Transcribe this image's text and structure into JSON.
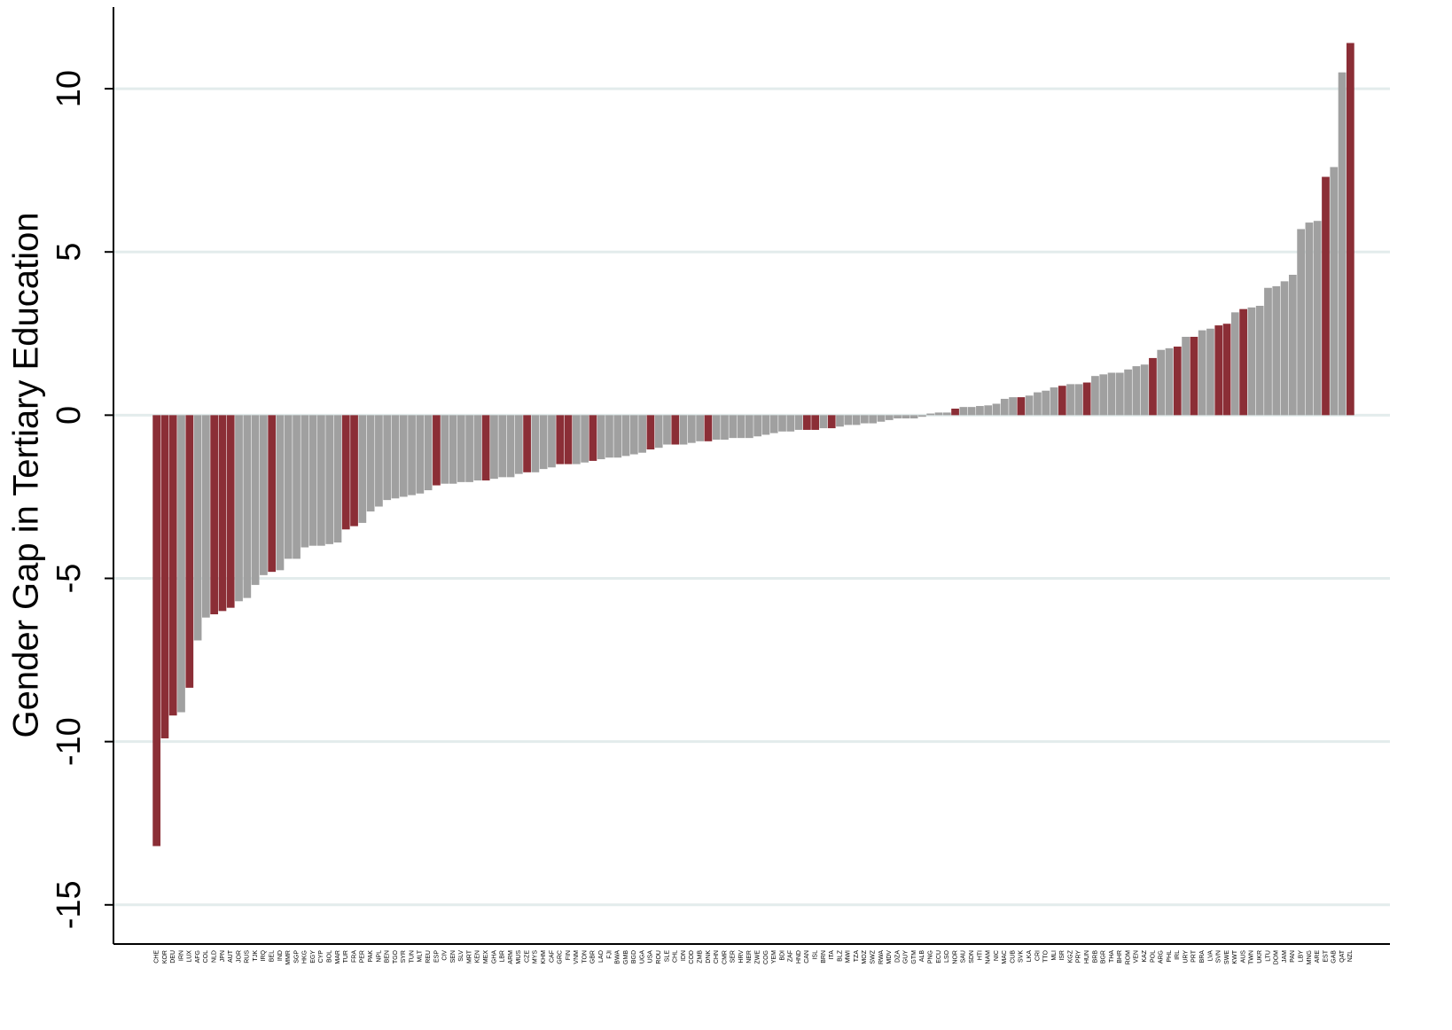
{
  "chart_data": {
    "type": "bar",
    "y_label": "Gender Gap in Tertiary Education",
    "categories": [
      "CHE",
      "KOR",
      "DEU",
      "IRN",
      "LUX",
      "AFG",
      "COL",
      "NLD",
      "JPN",
      "AUT",
      "JOR",
      "RUS",
      "TJK",
      "IRQ",
      "BEL",
      "IND",
      "MMR",
      "SGP",
      "HKG",
      "EGY",
      "CYP",
      "BOL",
      "MAR",
      "TUR",
      "FRA",
      "PER",
      "PAK",
      "NPL",
      "BEN",
      "TGO",
      "SYR",
      "TUN",
      "MLT",
      "REU",
      "ESP",
      "CIV",
      "SEN",
      "SLV",
      "MRT",
      "KEN",
      "MEX",
      "GHA",
      "LBR",
      "ARM",
      "MUS",
      "CZE",
      "MYS",
      "KHM",
      "CAF",
      "GRC",
      "FIN",
      "VNM",
      "TON",
      "GBR",
      "LAO",
      "FJI",
      "BWA",
      "GMB",
      "BGD",
      "UGA",
      "USA",
      "ROU",
      "SLE",
      "CHL",
      "IDN",
      "COD",
      "ZMB",
      "DNK",
      "CHN",
      "CMR",
      "SER",
      "HRV",
      "NER",
      "ZWE",
      "COG",
      "YEM",
      "BDI",
      "ZAF",
      "HND",
      "CAN",
      "ISL",
      "BRN",
      "ITA",
      "BLZ",
      "MWI",
      "TZA",
      "MOZ",
      "SWZ",
      "RWA",
      "MDV",
      "DZA",
      "GUY",
      "GTM",
      "ALB",
      "PNG",
      "ECU",
      "LSO",
      "NOR",
      "SAU",
      "SDN",
      "HTI",
      "NAM",
      "NIC",
      "MAC",
      "CUB",
      "SVK",
      "LKA",
      "CRI",
      "TTO",
      "MLI",
      "ISR",
      "KGZ",
      "PRY",
      "HUN",
      "BRB",
      "BGR",
      "THA",
      "BHR",
      "ROM",
      "VEN",
      "KAZ",
      "POL",
      "ARG",
      "PHL",
      "IRL",
      "URY",
      "PRT",
      "BRA",
      "LVA",
      "SVN",
      "SWE",
      "KWT",
      "AUS",
      "TWN",
      "UKR",
      "LTU",
      "DOM",
      "JAM",
      "PAN",
      "LBY",
      "MNG",
      "ARE",
      "EST",
      "GAB",
      "QAT",
      "NZL"
    ],
    "values": [
      -13.2,
      -9.9,
      -9.2,
      -9.1,
      -8.35,
      -6.9,
      -6.2,
      -6.1,
      -6.0,
      -5.9,
      -5.7,
      -5.6,
      -5.2,
      -4.9,
      -4.8,
      -4.75,
      -4.4,
      -4.4,
      -4.05,
      -4.0,
      -4.0,
      -3.95,
      -3.9,
      -3.5,
      -3.4,
      -3.3,
      -2.95,
      -2.8,
      -2.6,
      -2.55,
      -2.5,
      -2.45,
      -2.4,
      -2.3,
      -2.15,
      -2.1,
      -2.1,
      -2.05,
      -2.05,
      -2.0,
      -2.0,
      -1.95,
      -1.9,
      -1.9,
      -1.8,
      -1.75,
      -1.75,
      -1.65,
      -1.6,
      -1.5,
      -1.5,
      -1.5,
      -1.45,
      -1.4,
      -1.35,
      -1.3,
      -1.3,
      -1.25,
      -1.2,
      -1.15,
      -1.05,
      -1.0,
      -0.9,
      -0.9,
      -0.9,
      -0.85,
      -0.8,
      -0.8,
      -0.75,
      -0.75,
      -0.7,
      -0.7,
      -0.7,
      -0.65,
      -0.6,
      -0.55,
      -0.5,
      -0.5,
      -0.45,
      -0.45,
      -0.45,
      -0.4,
      -0.4,
      -0.35,
      -0.3,
      -0.3,
      -0.25,
      -0.25,
      -0.2,
      -0.15,
      -0.1,
      -0.1,
      -0.1,
      -0.05,
      0.05,
      0.08,
      0.08,
      0.2,
      0.25,
      0.25,
      0.28,
      0.3,
      0.35,
      0.5,
      0.55,
      0.55,
      0.6,
      0.7,
      0.75,
      0.85,
      0.9,
      0.95,
      0.95,
      1.0,
      1.2,
      1.25,
      1.3,
      1.3,
      1.4,
      1.5,
      1.55,
      1.75,
      2.0,
      2.05,
      2.1,
      2.4,
      2.4,
      2.6,
      2.65,
      2.75,
      2.8,
      3.15,
      3.25,
      3.3,
      3.35,
      3.9,
      3.95,
      4.1,
      4.3,
      5.7,
      5.9,
      5.95,
      7.3,
      7.6,
      10.5,
      11.4
    ],
    "colors": [
      "#8b2e36",
      "#8b2e36",
      "#8b2e36",
      "#a0a0a0",
      "#8b2e36",
      "#a0a0a0",
      "#a0a0a0",
      "#8b2e36",
      "#8b2e36",
      "#8b2e36",
      "#a0a0a0",
      "#a0a0a0",
      "#a0a0a0",
      "#a0a0a0",
      "#8b2e36",
      "#a0a0a0",
      "#a0a0a0",
      "#a0a0a0",
      "#a0a0a0",
      "#a0a0a0",
      "#a0a0a0",
      "#a0a0a0",
      "#a0a0a0",
      "#8b2e36",
      "#8b2e36",
      "#a0a0a0",
      "#a0a0a0",
      "#a0a0a0",
      "#a0a0a0",
      "#a0a0a0",
      "#a0a0a0",
      "#a0a0a0",
      "#a0a0a0",
      "#a0a0a0",
      "#8b2e36",
      "#a0a0a0",
      "#a0a0a0",
      "#a0a0a0",
      "#a0a0a0",
      "#a0a0a0",
      "#8b2e36",
      "#a0a0a0",
      "#a0a0a0",
      "#a0a0a0",
      "#a0a0a0",
      "#8b2e36",
      "#a0a0a0",
      "#a0a0a0",
      "#a0a0a0",
      "#8b2e36",
      "#8b2e36",
      "#a0a0a0",
      "#a0a0a0",
      "#8b2e36",
      "#a0a0a0",
      "#a0a0a0",
      "#a0a0a0",
      "#a0a0a0",
      "#a0a0a0",
      "#a0a0a0",
      "#8b2e36",
      "#a0a0a0",
      "#a0a0a0",
      "#8b2e36",
      "#a0a0a0",
      "#a0a0a0",
      "#a0a0a0",
      "#8b2e36",
      "#a0a0a0",
      "#a0a0a0",
      "#a0a0a0",
      "#a0a0a0",
      "#a0a0a0",
      "#a0a0a0",
      "#a0a0a0",
      "#a0a0a0",
      "#a0a0a0",
      "#a0a0a0",
      "#a0a0a0",
      "#8b2e36",
      "#8b2e36",
      "#a0a0a0",
      "#8b2e36",
      "#a0a0a0",
      "#a0a0a0",
      "#a0a0a0",
      "#a0a0a0",
      "#a0a0a0",
      "#a0a0a0",
      "#a0a0a0",
      "#a0a0a0",
      "#a0a0a0",
      "#a0a0a0",
      "#a0a0a0",
      "#a0a0a0",
      "#a0a0a0",
      "#a0a0a0",
      "#8b2e36",
      "#a0a0a0",
      "#a0a0a0",
      "#a0a0a0",
      "#a0a0a0",
      "#a0a0a0",
      "#a0a0a0",
      "#a0a0a0",
      "#8b2e36",
      "#a0a0a0",
      "#a0a0a0",
      "#a0a0a0",
      "#a0a0a0",
      "#8b2e36",
      "#a0a0a0",
      "#a0a0a0",
      "#8b2e36",
      "#a0a0a0",
      "#a0a0a0",
      "#a0a0a0",
      "#a0a0a0",
      "#a0a0a0",
      "#a0a0a0",
      "#a0a0a0",
      "#8b2e36",
      "#a0a0a0",
      "#a0a0a0",
      "#8b2e36",
      "#a0a0a0",
      "#8b2e36",
      "#a0a0a0",
      "#a0a0a0",
      "#8b2e36",
      "#8b2e36",
      "#a0a0a0",
      "#8b2e36",
      "#a0a0a0",
      "#a0a0a0",
      "#a0a0a0",
      "#a0a0a0",
      "#a0a0a0",
      "#a0a0a0",
      "#a0a0a0",
      "#a0a0a0",
      "#a0a0a0",
      "#8b2e36",
      "#a0a0a0",
      "#a0a0a0",
      "#8b2e36"
    ],
    "ylim": [
      -16.2,
      12.5
    ],
    "yticks": [
      -15,
      -10,
      -5,
      0,
      5,
      10
    ],
    "grid": true
  }
}
